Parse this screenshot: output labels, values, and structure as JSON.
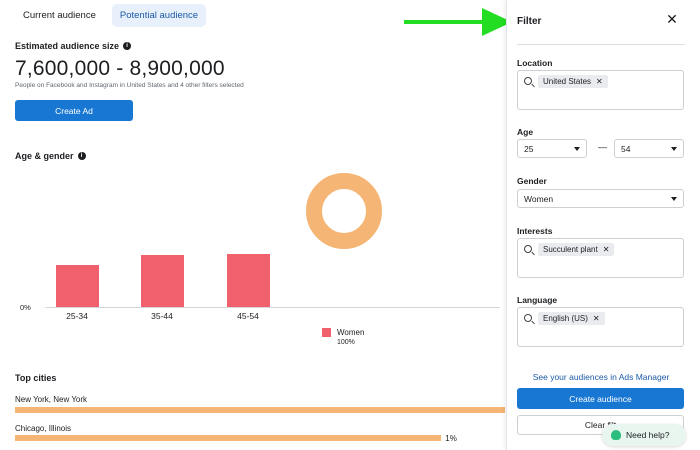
{
  "tabs": [
    {
      "label": "Current audience"
    },
    {
      "label": "Potential audience"
    }
  ],
  "estimate": {
    "heading": "Estimated audience size",
    "range": "7,600,000 - 8,900,000",
    "note": "People on Facebook and Instagram in United States and 4 other filters selected",
    "create_ad_label": "Create Ad"
  },
  "age_gender": {
    "heading": "Age & gender",
    "zero_label": "0%"
  },
  "chart_data": {
    "type": "bar",
    "categories": [
      "25-34",
      "35-44",
      "45-54"
    ],
    "series": [
      {
        "name": "Women",
        "values": [
          32,
          40,
          41
        ]
      }
    ],
    "legend_pct": "100%",
    "donut": {
      "type": "pie",
      "slices": [
        {
          "name": "Women",
          "value": 100
        }
      ],
      "color": "#f5b574"
    },
    "bar_color": "#f0616d",
    "ylim": [
      0,
      100
    ]
  },
  "top_cities": {
    "heading": "Top cities",
    "items": [
      {
        "name": "New York, New York",
        "fraction": 1.0,
        "pct": ""
      },
      {
        "name": "Chicago, Illinois",
        "fraction": 0.87,
        "pct": "1%"
      }
    ],
    "bar_color": "#f5b574"
  },
  "filter": {
    "title": "Filter",
    "location": {
      "label": "Location",
      "chip": "United States"
    },
    "age": {
      "label": "Age",
      "min": "25",
      "dash": "—",
      "max": "54"
    },
    "gender": {
      "label": "Gender",
      "value": "Women"
    },
    "interests": {
      "label": "Interests",
      "chip": "Succulent plant"
    },
    "language": {
      "label": "Language",
      "chip": "English (US)"
    },
    "ads_manager_link": "See your audiences in Ads Manager",
    "create_audience_label": "Create audience",
    "clear_label": "Clear filt"
  },
  "help": {
    "label": "Need help?"
  },
  "arrow_color": "#22dd22"
}
